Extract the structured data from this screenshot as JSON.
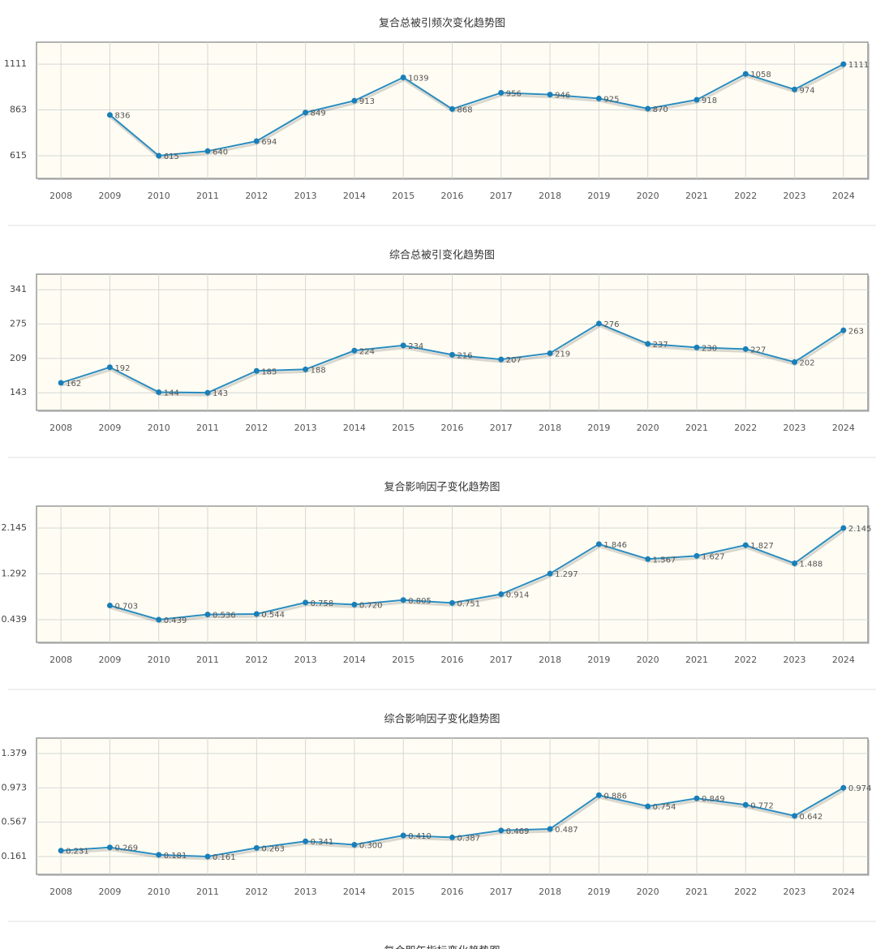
{
  "chart_data": [
    {
      "type": "line",
      "title": "复合总被引频次变化趋势图",
      "categories": [
        "2008",
        "2009",
        "2010",
        "2011",
        "2012",
        "2013",
        "2014",
        "2015",
        "2016",
        "2017",
        "2018",
        "2019",
        "2020",
        "2021",
        "2022",
        "2023",
        "2024"
      ],
      "values": [
        null,
        836,
        615,
        640,
        694,
        849,
        913,
        1039,
        868,
        956,
        946,
        925,
        870,
        918,
        1058,
        974,
        1111
      ],
      "ylim": [
        492,
        1230
      ],
      "yticks": [
        615,
        863,
        1111
      ],
      "grid": true,
      "color": "#2a8cc0"
    },
    {
      "type": "line",
      "title": "综合总被引变化趋势图",
      "categories": [
        "2008",
        "2009",
        "2010",
        "2011",
        "2012",
        "2013",
        "2014",
        "2015",
        "2016",
        "2017",
        "2018",
        "2019",
        "2020",
        "2021",
        "2022",
        "2023",
        "2024"
      ],
      "values": [
        162,
        192,
        144,
        143,
        185,
        188,
        224,
        234,
        216,
        207,
        219,
        276,
        237,
        230,
        227,
        202,
        263
      ],
      "ylim": [
        109,
        371
      ],
      "yticks": [
        143,
        209,
        275,
        341
      ],
      "grid": true,
      "color": "#2a8cc0"
    },
    {
      "type": "line",
      "title": "复合影响因子变化趋势图",
      "categories": [
        "2008",
        "2009",
        "2010",
        "2011",
        "2012",
        "2013",
        "2014",
        "2015",
        "2016",
        "2017",
        "2018",
        "2019",
        "2020",
        "2021",
        "2022",
        "2023",
        "2024"
      ],
      "values": [
        null,
        0.703,
        0.439,
        0.536,
        0.544,
        0.758,
        0.72,
        0.805,
        0.751,
        0.914,
        1.297,
        1.846,
        1.567,
        1.627,
        1.827,
        1.488,
        2.145
      ],
      "value_labels": [
        null,
        "0.703",
        "0.439",
        "0.536",
        "0.544",
        "0.758",
        "0.720",
        "0.805",
        "0.751",
        "0.914",
        "1.297",
        "1.846",
        "1.567",
        "1.627",
        "1.827",
        "1.488",
        "2.145"
      ],
      "ylim": [
        0.016,
        2.553
      ],
      "yticks": [
        0.439,
        1.292,
        2.145
      ],
      "grid": true,
      "color": "#2a8cc0"
    },
    {
      "type": "line",
      "title": "综合影响因子变化趋势图",
      "categories": [
        "2008",
        "2009",
        "2010",
        "2011",
        "2012",
        "2013",
        "2014",
        "2015",
        "2016",
        "2017",
        "2018",
        "2019",
        "2020",
        "2021",
        "2022",
        "2023",
        "2024"
      ],
      "values": [
        0.231,
        0.269,
        0.181,
        0.161,
        0.263,
        0.341,
        0.3,
        0.41,
        0.387,
        0.469,
        0.487,
        0.886,
        0.754,
        0.849,
        0.772,
        0.642,
        0.974
      ],
      "value_labels": [
        "0.231",
        "0.269",
        "0.181",
        "0.161",
        "0.263",
        "0.341",
        "0.300",
        "0.410",
        "0.387",
        "0.469",
        "0.487",
        "0.886",
        "0.754",
        "0.849",
        "0.772",
        "0.642",
        "0.974"
      ],
      "ylim": [
        -0.05,
        1.561
      ],
      "yticks": [
        0.161,
        0.567,
        0.973,
        1.379
      ],
      "grid": true,
      "color": "#2a8cc0"
    },
    {
      "type": "line",
      "title": "复合即年指标变化趋势图"
    }
  ]
}
